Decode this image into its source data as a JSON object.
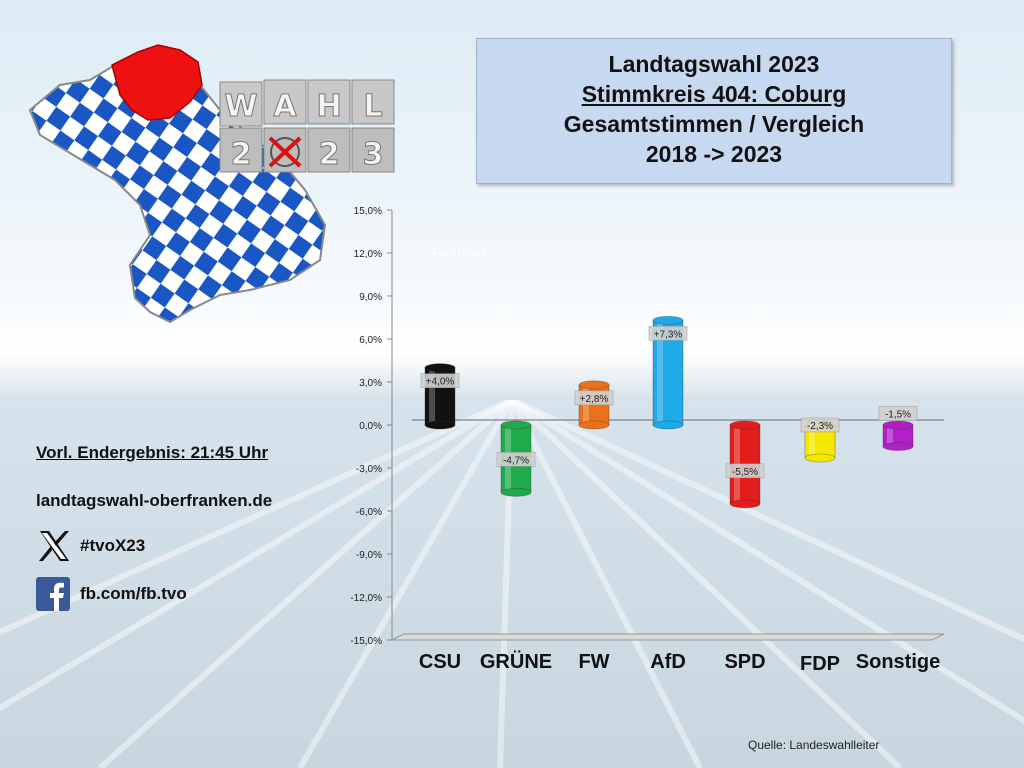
{
  "title": {
    "line1": "Landtagswahl 2023",
    "line2": "Stimmkreis 404: Coburg",
    "line3": "Gesamtstimmen / Vergleich",
    "line4": "2018 -> 2023"
  },
  "logo_text": {
    "top": "WAHL",
    "bottom_left": "2",
    "bottom_right": "23"
  },
  "info": {
    "endergebnis": "Vorl. Endergebnis: 21:45 Uhr",
    "website": "landtagswahl-oberfranken.de",
    "twitter": "#tvoX23",
    "facebook": "fb.com/fb.tvo"
  },
  "watermark": "Fichtner",
  "source": "Quelle:  Landeswahlleiter",
  "colors": {
    "CSU": "#111111",
    "GRÜNE": "#1faa4b",
    "FW": "#e8711a",
    "AfD": "#1ea9e8",
    "SPD": "#e31c1c",
    "FDP": "#f5e800",
    "Sonstige": "#b21fc9",
    "title_box": "#c6d9f0",
    "bavaria_blue": "#1a56c4",
    "region_red": "#ee1111"
  },
  "chart_data": {
    "type": "bar",
    "title": "",
    "xlabel": "",
    "ylabel": "",
    "categories": [
      "CSU",
      "GRÜNE",
      "FW",
      "AfD",
      "SPD",
      "FDP",
      "Sonstige"
    ],
    "values": [
      4.0,
      -4.7,
      2.8,
      7.3,
      -5.5,
      -2.3,
      -1.5
    ],
    "value_labels": [
      "+4,0%",
      "-4,7%",
      "+2,8%",
      "+7,3%",
      "-5,5%",
      "-2,3%",
      "-1,5%"
    ],
    "ylim": [
      -15,
      15
    ],
    "yticks": [
      15,
      12,
      9,
      6,
      3,
      0,
      -3,
      -6,
      -9,
      -12,
      -15
    ],
    "ytick_labels": [
      "15,0%",
      "12,0%",
      "9,0%",
      "6,0%",
      "3,0%",
      "0,0%",
      "-3,0%",
      "-6,0%",
      "-9,0%",
      "-12,0%",
      "-15,0%"
    ],
    "grid": false,
    "legend": "none"
  }
}
